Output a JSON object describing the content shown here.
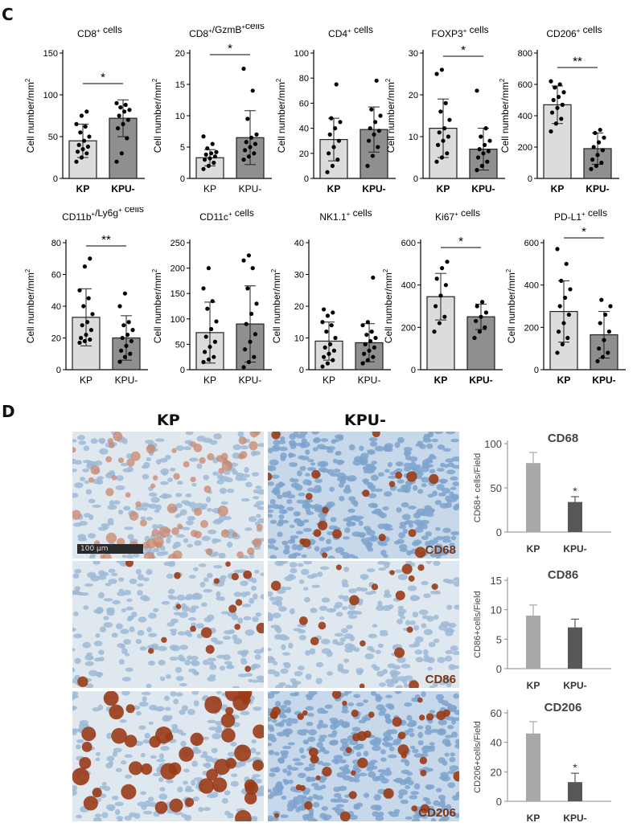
{
  "panel_c_letter": "C",
  "panel_d_letter": "D",
  "chart_data": [
    {
      "type": "bar",
      "title": "CD8+ cells",
      "ylabel": "Cell number/mm2",
      "ylim": [
        0,
        150
      ],
      "yticks": [
        0,
        50,
        100,
        150
      ],
      "categories": [
        "KP",
        "KPU-"
      ],
      "values": [
        45,
        72
      ],
      "errors": [
        20,
        22
      ],
      "points": [
        [
          20,
          25,
          30,
          32,
          35,
          38,
          40,
          45,
          50,
          55,
          62,
          65,
          75,
          80
        ],
        [
          20,
          30,
          48,
          60,
          65,
          70,
          75,
          80,
          82,
          85,
          88,
          90
        ]
      ],
      "significance": "*",
      "tick_bold": true,
      "fills": [
        "#dcdcdc",
        "#8f8f8f"
      ]
    },
    {
      "type": "bar",
      "title": "CD8+/GzmB+cells",
      "ylabel": "Cell number/mm2",
      "ylim": [
        0,
        20
      ],
      "yticks": [
        0,
        5,
        10,
        15,
        20
      ],
      "categories": [
        "KP",
        "KPU-"
      ],
      "values": [
        3.3,
        6.5
      ],
      "errors": [
        1.3,
        4.3
      ],
      "points": [
        [
          1.5,
          2,
          2.5,
          3,
          3.2,
          3.5,
          3.8,
          4,
          4.2,
          4.8,
          5.5,
          6.7
        ],
        [
          3,
          3.5,
          4,
          4.5,
          5,
          5.5,
          5.8,
          6.5,
          7,
          9.5,
          14,
          17.5
        ]
      ],
      "significance": "*",
      "tick_bold": false,
      "fills": [
        "#dcdcdc",
        "#8f8f8f"
      ]
    },
    {
      "type": "bar",
      "title": "CD4+ cells",
      "ylabel": "Cell number/mm2",
      "ylim": [
        0,
        100
      ],
      "yticks": [
        0,
        20,
        40,
        60,
        80,
        100
      ],
      "categories": [
        "KP",
        "KPU-"
      ],
      "values": [
        31,
        39
      ],
      "errors": [
        17,
        18
      ],
      "points": [
        [
          5,
          10,
          15,
          20,
          25,
          30,
          35,
          40,
          45,
          48,
          75
        ],
        [
          10,
          18,
          25,
          30,
          35,
          38,
          40,
          45,
          50,
          55,
          78
        ]
      ],
      "significance": "",
      "tick_bold": true,
      "fills": [
        "#dcdcdc",
        "#8f8f8f"
      ]
    },
    {
      "type": "bar",
      "title": "FOXP3+ cells",
      "ylabel": "Cell number/mm2",
      "ylim": [
        0,
        30
      ],
      "yticks": [
        0,
        10,
        20,
        30
      ],
      "categories": [
        "KP",
        "KPU-"
      ],
      "values": [
        12,
        7
      ],
      "errors": [
        7,
        5
      ],
      "points": [
        [
          4,
          5,
          6,
          8,
          9,
          10,
          11,
          12,
          14,
          16,
          18,
          25,
          26
        ],
        [
          2,
          3,
          4,
          5,
          6,
          6.5,
          7,
          8,
          9,
          10,
          12,
          21
        ]
      ],
      "significance": "*",
      "tick_bold": true,
      "fills": [
        "#dcdcdc",
        "#8f8f8f"
      ]
    },
    {
      "type": "bar",
      "title": "CD206+ cells",
      "ylabel": "Cell number/mm2",
      "ylim": [
        0,
        800
      ],
      "yticks": [
        0,
        200,
        400,
        600,
        800
      ],
      "categories": [
        "KP",
        "KPU-"
      ],
      "values": [
        470,
        190
      ],
      "errors": [
        120,
        100
      ],
      "points": [
        [
          300,
          350,
          380,
          420,
          450,
          470,
          500,
          520,
          550,
          580,
          600,
          620
        ],
        [
          60,
          80,
          100,
          120,
          150,
          180,
          200,
          230,
          260,
          290,
          310
        ]
      ],
      "significance": "**",
      "tick_bold": true,
      "fills": [
        "#dcdcdc",
        "#8f8f8f"
      ]
    },
    {
      "type": "bar",
      "title": "CD11b+/Ly6g+ cells",
      "ylabel": "Cell number/mm2",
      "ylim": [
        0,
        80
      ],
      "yticks": [
        0,
        20,
        40,
        60,
        80
      ],
      "categories": [
        "KP",
        "KPU-"
      ],
      "values": [
        33,
        20
      ],
      "errors": [
        18,
        14
      ],
      "points": [
        [
          17,
          18,
          19,
          20,
          22,
          25,
          28,
          30,
          35,
          40,
          45,
          50,
          65,
          70
        ],
        [
          5,
          8,
          10,
          12,
          15,
          18,
          20,
          22,
          25,
          28,
          30,
          40,
          48
        ]
      ],
      "significance": "**",
      "tick_bold": false,
      "fills": [
        "#dcdcdc",
        "#8f8f8f"
      ]
    },
    {
      "type": "bar",
      "title": "CD11c+ cells",
      "ylabel": "Cell number/mm2",
      "ylim": [
        0,
        250
      ],
      "yticks": [
        0,
        50,
        100,
        150,
        200,
        250
      ],
      "categories": [
        "KP",
        "KPU-"
      ],
      "values": [
        73,
        90
      ],
      "errors": [
        60,
        75
      ],
      "points": [
        [
          15,
          20,
          25,
          35,
          45,
          55,
          65,
          80,
          95,
          120,
          135,
          160,
          200
        ],
        [
          5,
          15,
          25,
          40,
          55,
          70,
          90,
          110,
          130,
          160,
          200,
          215,
          225
        ]
      ],
      "significance": "",
      "tick_bold": false,
      "fills": [
        "#dcdcdc",
        "#8f8f8f"
      ]
    },
    {
      "type": "bar",
      "title": "NK1.1+ cells",
      "ylabel": "Cell number/mm2",
      "ylim": [
        0,
        40
      ],
      "yticks": [
        0,
        10,
        20,
        30,
        40
      ],
      "categories": [
        "KP",
        "KPU-"
      ],
      "values": [
        9,
        8.5
      ],
      "errors": [
        6,
        6
      ],
      "points": [
        [
          1,
          2,
          3,
          4,
          5,
          6,
          7,
          8,
          10,
          12,
          14,
          15,
          17,
          18,
          19
        ],
        [
          2,
          3,
          4,
          5,
          6,
          7,
          8,
          9,
          10,
          11,
          12,
          14,
          15,
          29
        ]
      ],
      "significance": "",
      "tick_bold": false,
      "fills": [
        "#dcdcdc",
        "#8f8f8f"
      ]
    },
    {
      "type": "bar",
      "title": "Ki67+ cells",
      "ylabel": "Cell number/mm2",
      "ylim": [
        0,
        600
      ],
      "yticks": [
        0,
        200,
        400,
        600
      ],
      "categories": [
        "KP",
        "KPU-"
      ],
      "values": [
        345,
        250
      ],
      "errors": [
        110,
        60
      ],
      "points": [
        [
          180,
          220,
          250,
          300,
          350,
          400,
          430,
          480,
          510
        ],
        [
          150,
          180,
          200,
          230,
          250,
          270,
          300,
          320
        ]
      ],
      "significance": "*",
      "tick_bold": true,
      "fills": [
        "#dcdcdc",
        "#8f8f8f"
      ]
    },
    {
      "type": "bar",
      "title": "PD-L1+ cells",
      "ylabel": "Cell number/mm2",
      "ylim": [
        0,
        600
      ],
      "yticks": [
        0,
        200,
        400,
        600
      ],
      "categories": [
        "KP",
        "KPU-"
      ],
      "values": [
        275,
        165
      ],
      "errors": [
        145,
        110
      ],
      "points": [
        [
          80,
          120,
          150,
          180,
          220,
          260,
          300,
          340,
          380,
          420,
          500,
          570
        ],
        [
          40,
          60,
          80,
          100,
          140,
          180,
          220,
          260,
          300,
          330
        ]
      ],
      "significance": "*",
      "tick_bold": true,
      "fills": [
        "#dcdcdc",
        "#8f8f8f"
      ]
    },
    {
      "type": "bar",
      "title": "CD68",
      "ylabel": "CD68+ cells/Field",
      "ylim": [
        0,
        100
      ],
      "yticks": [
        0,
        50,
        100
      ],
      "categories": [
        "KP",
        "KPU-"
      ],
      "values": [
        78,
        34
      ],
      "errors": [
        12,
        6
      ],
      "significance": "*",
      "fills": [
        "#a8a8a8",
        "#575757"
      ]
    },
    {
      "type": "bar",
      "title": "CD86",
      "ylabel": "CD86+cells/Field",
      "ylim": [
        0,
        15
      ],
      "yticks": [
        0,
        5,
        10,
        15
      ],
      "categories": [
        "KP",
        "KPU-"
      ],
      "values": [
        9,
        7
      ],
      "errors": [
        1.8,
        1.4
      ],
      "significance": "",
      "fills": [
        "#a8a8a8",
        "#575757"
      ]
    },
    {
      "type": "bar",
      "title": "CD206",
      "ylabel": "CD206+cells/Field",
      "ylim": [
        0,
        60
      ],
      "yticks": [
        0,
        20,
        40,
        60
      ],
      "categories": [
        "KP",
        "KPU-"
      ],
      "values": [
        46,
        13
      ],
      "errors": [
        8,
        6
      ],
      "significance": "*",
      "fills": [
        "#a8a8a8",
        "#575757"
      ]
    }
  ],
  "ihc": {
    "columns": [
      "KP",
      "KPU-"
    ],
    "rows": [
      {
        "marker": "CD68"
      },
      {
        "marker": "CD86"
      },
      {
        "marker": "CD206"
      }
    ],
    "scalebar": "100 µm"
  }
}
